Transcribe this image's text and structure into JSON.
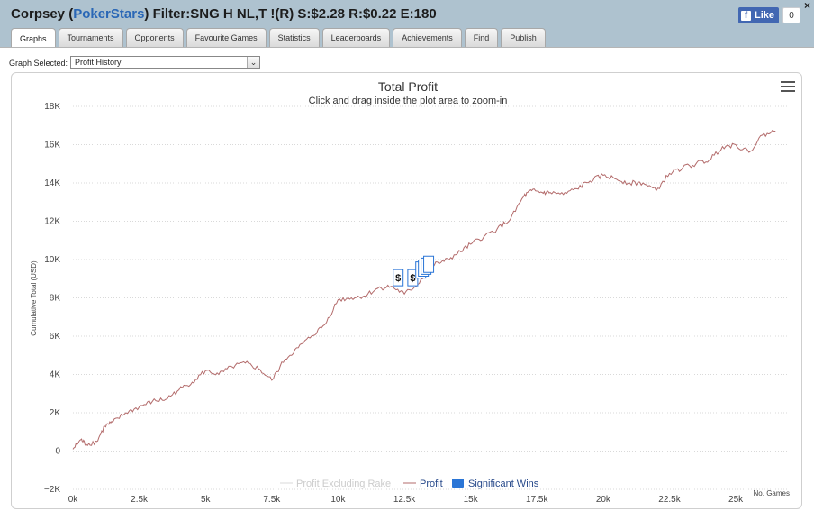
{
  "header": {
    "player": "Corpsey",
    "paren_open": " (",
    "site": "PokerStars",
    "paren_close": ")",
    "filter_text": " Filter:SNG H NL,T !(R) S:$2.28 R:$0.22 E:180",
    "close_glyph": "×",
    "fb_like_label": "Like",
    "fb_icon_glyph": "f",
    "fb_count": "0"
  },
  "tabs": [
    {
      "label": "Graphs",
      "active": true
    },
    {
      "label": "Tournaments",
      "active": false
    },
    {
      "label": "Opponents",
      "active": false
    },
    {
      "label": "Favourite Games",
      "active": false
    },
    {
      "label": "Statistics",
      "active": false
    },
    {
      "label": "Leaderboards",
      "active": false
    },
    {
      "label": "Achievements",
      "active": false
    },
    {
      "label": "Find",
      "active": false
    },
    {
      "label": "Publish",
      "active": false
    }
  ],
  "graph_select": {
    "label": "Graph Selected:",
    "value": "Profit History",
    "arrow_glyph": "⌄"
  },
  "chart_data": {
    "type": "line",
    "title": "Total Profit",
    "subtitle": "Click and drag inside the plot area to zoom-in",
    "xlabel": "No. Games",
    "ylabel": "Cumulative Total (USD)",
    "xlim": [
      0,
      27000
    ],
    "ylim": [
      -2000,
      18000
    ],
    "x_ticks": [
      0,
      2500,
      5000,
      7500,
      10000,
      12500,
      15000,
      17500,
      20000,
      22500,
      25000
    ],
    "x_tick_labels": [
      "0k",
      "2.5k",
      "5k",
      "7.5k",
      "10k",
      "12.5k",
      "15k",
      "17.5k",
      "20k",
      "22.5k",
      "25k"
    ],
    "y_ticks": [
      -2000,
      0,
      2000,
      4000,
      6000,
      8000,
      10000,
      12000,
      14000,
      16000,
      18000
    ],
    "y_tick_labels": [
      "−2K",
      "0",
      "2K",
      "4K",
      "6K",
      "8K",
      "10K",
      "12K",
      "14K",
      "16K",
      "18K"
    ],
    "grid": true,
    "legend_position": "bottom-center",
    "series": [
      {
        "name": "Profit Excluding Rake",
        "color": "#d8d8d8",
        "hidden": true,
        "points": []
      },
      {
        "name": "Profit",
        "color": "#b36b6b",
        "points": [
          [
            0,
            100
          ],
          [
            300,
            600
          ],
          [
            500,
            350
          ],
          [
            900,
            500
          ],
          [
            1200,
            1300
          ],
          [
            1500,
            1500
          ],
          [
            2000,
            2000
          ],
          [
            2500,
            2300
          ],
          [
            3000,
            2600
          ],
          [
            3500,
            2700
          ],
          [
            4000,
            3200
          ],
          [
            4500,
            3600
          ],
          [
            5000,
            4200
          ],
          [
            5500,
            4000
          ],
          [
            6000,
            4400
          ],
          [
            6500,
            4600
          ],
          [
            7000,
            4300
          ],
          [
            7500,
            3700
          ],
          [
            8000,
            4800
          ],
          [
            8500,
            5400
          ],
          [
            9000,
            6000
          ],
          [
            9500,
            6600
          ],
          [
            10000,
            7900
          ],
          [
            10500,
            8000
          ],
          [
            11000,
            8100
          ],
          [
            11500,
            8500
          ],
          [
            12000,
            8600
          ],
          [
            12500,
            8200
          ],
          [
            13000,
            8700
          ],
          [
            13500,
            9700
          ],
          [
            14000,
            9900
          ],
          [
            14500,
            10300
          ],
          [
            15000,
            10800
          ],
          [
            15500,
            11200
          ],
          [
            16000,
            11600
          ],
          [
            16500,
            12100
          ],
          [
            17000,
            13300
          ],
          [
            17300,
            13600
          ],
          [
            17700,
            13500
          ],
          [
            18000,
            13500
          ],
          [
            18500,
            13400
          ],
          [
            19000,
            13700
          ],
          [
            19500,
            14100
          ],
          [
            20000,
            14400
          ],
          [
            20500,
            14200
          ],
          [
            21000,
            14000
          ],
          [
            21500,
            14000
          ],
          [
            22000,
            13600
          ],
          [
            22500,
            14500
          ],
          [
            23000,
            14800
          ],
          [
            23500,
            15000
          ],
          [
            24000,
            15200
          ],
          [
            24500,
            15900
          ],
          [
            25000,
            16000
          ],
          [
            25500,
            15600
          ],
          [
            26000,
            16500
          ],
          [
            26500,
            16700
          ]
        ]
      },
      {
        "name": "Significant Wins",
        "color": "#2a75d6",
        "type": "markers",
        "marker_glyph": "$",
        "points": [
          [
            12250,
            9100
          ],
          [
            12800,
            9100
          ],
          [
            13100,
            9500
          ],
          [
            13200,
            9600
          ],
          [
            13300,
            9700
          ],
          [
            13400,
            9800
          ]
        ]
      }
    ]
  }
}
